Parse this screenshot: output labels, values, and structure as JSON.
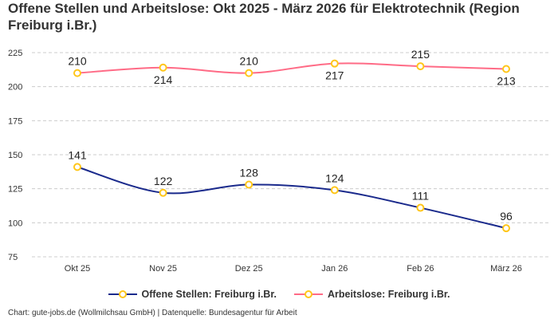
{
  "chart_data": {
    "type": "line",
    "title": "Offene Stellen und Arbeitslose: Okt 2025 - März 2026 für Elektrotechnik (Region Freiburg i.Br.)",
    "categories": [
      "Okt 25",
      "Nov 25",
      "Dez 25",
      "Jan 26",
      "Feb 26",
      "März 26"
    ],
    "ylim": [
      75,
      225
    ],
    "yticks": [
      75,
      100,
      125,
      150,
      175,
      200,
      225
    ],
    "grid": true,
    "legend": "bottom",
    "series": [
      {
        "name": "Offene Stellen: Freiburg i.Br.",
        "values": [
          141,
          122,
          128,
          124,
          111,
          96
        ],
        "color": "#1a2a8c"
      },
      {
        "name": "Arbeitslose: Freiburg i.Br.",
        "values": [
          210,
          214,
          210,
          217,
          215,
          213
        ],
        "color": "#ff6b86"
      }
    ],
    "marker_color": "#ffc61a"
  },
  "credit": "Chart: gute-jobs.de (Wollmilchsau GmbH) | Datenquelle: Bundesagentur für Arbeit"
}
